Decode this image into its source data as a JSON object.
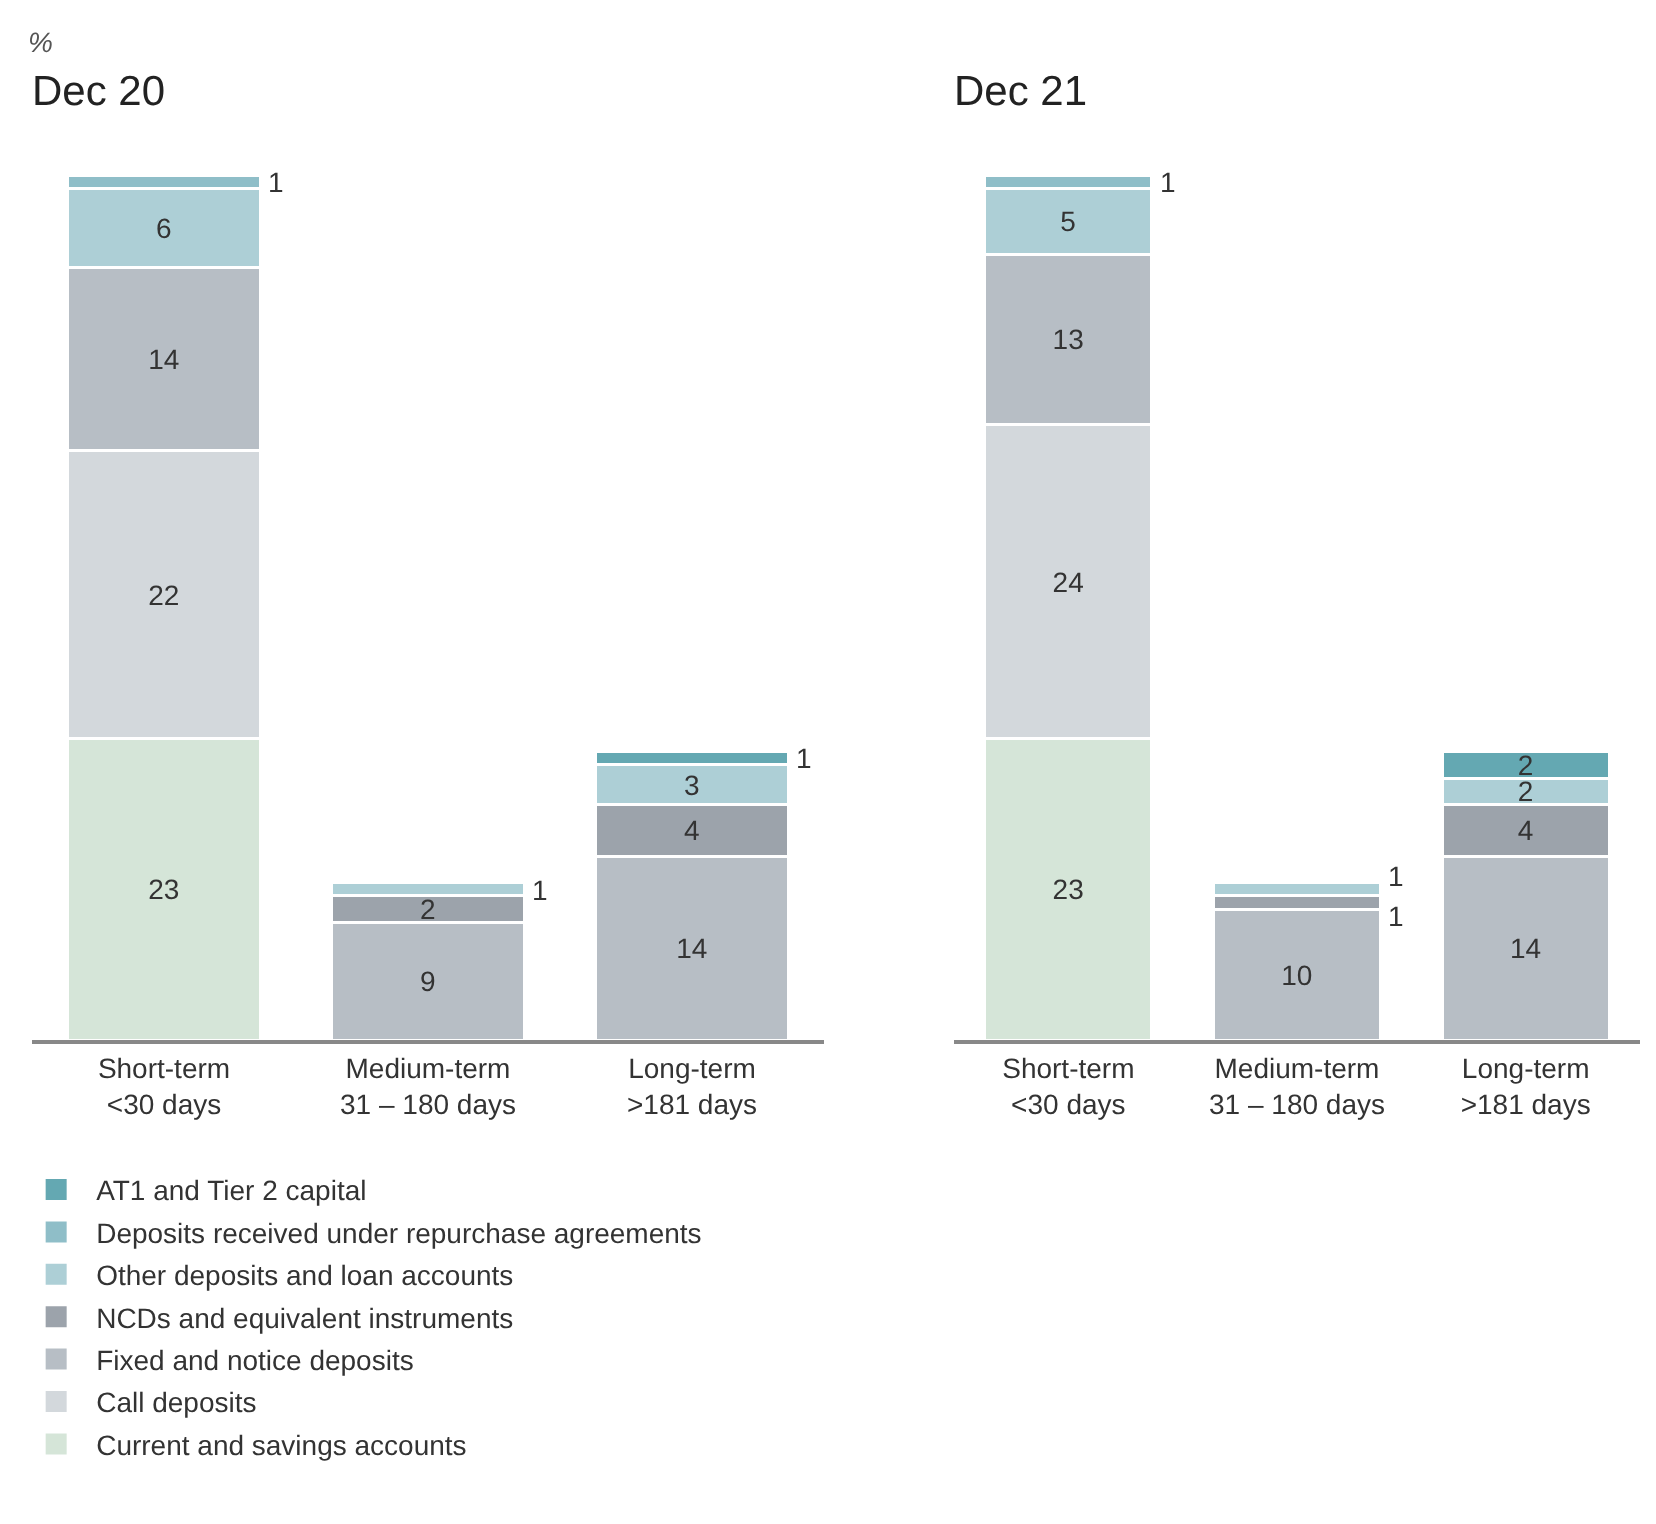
{
  "chart_data": [
    {
      "type": "bar",
      "title": "Dec 20",
      "ylabel": "%",
      "categories": [
        "Short-term\n<30 days",
        "Medium-term\n31 – 180 days",
        "Long-term\n>181 days"
      ],
      "stacked": true,
      "data_labels": true,
      "legend": "bottom",
      "series": [
        {
          "name": "Current and savings accounts",
          "color": "#d5e5d8",
          "values": [
            23,
            null,
            null
          ]
        },
        {
          "name": "Call deposits",
          "color": "#d3d8dc",
          "values": [
            22,
            null,
            null
          ]
        },
        {
          "name": "Fixed and notice deposits",
          "color": "#b7bec5",
          "values": [
            14,
            9,
            14
          ]
        },
        {
          "name": "NCDs and equivalent instruments",
          "color": "#9ca3ab",
          "values": [
            null,
            2,
            4
          ]
        },
        {
          "name": "Other deposits and loan accounts",
          "color": "#adcfd6",
          "values": [
            6,
            1,
            3
          ]
        },
        {
          "name": "Deposits received under repurchase agreements",
          "color": "#8fbec8",
          "values": [
            1,
            null,
            null
          ]
        },
        {
          "name": "AT1 and Tier 2 capital",
          "color": "#64a8b2",
          "values": [
            null,
            null,
            1
          ]
        }
      ]
    },
    {
      "type": "bar",
      "title": "Dec 21",
      "categories": [
        "Short-term\n<30 days",
        "Medium-term\n31 – 180 days",
        "Long-term\n>181 days"
      ],
      "stacked": true,
      "data_labels": true,
      "series": [
        {
          "color": "#d5e5d8",
          "values": [
            23,
            null,
            null
          ]
        },
        {
          "color": "#d3d8dc",
          "values": [
            24,
            null,
            null
          ]
        },
        {
          "color": "#b7bec5",
          "values": [
            13,
            10,
            14
          ]
        },
        {
          "color": "#9ca3ab",
          "values": [
            null,
            1,
            4
          ]
        },
        {
          "color": "#adcfd6",
          "values": [
            5,
            1,
            2
          ]
        },
        {
          "color": "#8fbec8",
          "values": [
            1,
            null,
            null
          ]
        },
        {
          "color": "#64a8b2",
          "values": [
            null,
            null,
            2
          ]
        }
      ]
    }
  ]
}
